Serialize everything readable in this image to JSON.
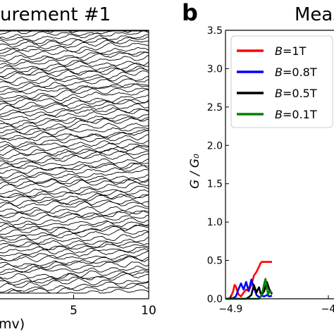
{
  "chart_data": [
    {
      "type": "line",
      "title": "urement #1",
      "xlabel": "mv)",
      "xticks": [
        "5",
        "10"
      ],
      "xlim": [
        0,
        10
      ],
      "description_colors": {
        "trace": "#000000"
      },
      "series_count": 90
    },
    {
      "type": "line",
      "panel_label": "b",
      "title": "Meas",
      "ylabel": "G / G₀",
      "ylim": [
        0,
        3.5
      ],
      "yticks": [
        "0.0",
        "0.5",
        "1.0",
        "1.5",
        "2.0",
        "2.5",
        "3.0",
        "3.5"
      ],
      "xticks": [
        "−4.9",
        "−4"
      ],
      "xlim": [
        -4.92,
        -4.5
      ],
      "legend_position": "upper-left",
      "series": [
        {
          "name": "B=1T",
          "color": "#ff0000",
          "x": [
            -4.92,
            -4.91,
            -4.9,
            -4.89,
            -4.885,
            -4.88,
            -4.87,
            -4.86,
            -4.85,
            -4.84,
            -4.83,
            -4.82,
            -4.81,
            -4.8,
            -4.79,
            -4.785,
            -4.78,
            -4.775,
            -4.77,
            -4.765,
            -4.76,
            -4.75,
            -4.74
          ],
          "y": [
            0.0,
            0.0,
            0.02,
            0.1,
            0.18,
            0.16,
            0.06,
            0.03,
            0.08,
            0.12,
            0.1,
            0.18,
            0.3,
            0.35,
            0.42,
            0.46,
            0.48,
            0.48,
            0.48,
            0.48,
            0.48,
            0.48,
            0.48
          ]
        },
        {
          "name": "B=0.8T",
          "color": "#0000ff",
          "x": [
            -4.92,
            -4.9,
            -4.89,
            -4.88,
            -4.87,
            -4.86,
            -4.85,
            -4.84,
            -4.83,
            -4.82,
            -4.81,
            -4.8,
            -4.79,
            -4.78,
            -4.77,
            -4.76,
            -4.75,
            -4.74
          ],
          "y": [
            0.0,
            0.0,
            0.01,
            0.03,
            0.12,
            0.2,
            0.12,
            0.22,
            0.1,
            0.25,
            0.15,
            0.05,
            0.02,
            0.04,
            0.03,
            0.05,
            0.03,
            0.04
          ]
        },
        {
          "name": "B=0.5T",
          "color": "#000000",
          "x": [
            -4.92,
            -4.84,
            -4.83,
            -4.82,
            -4.81,
            -4.8,
            -4.795,
            -4.79,
            -4.785,
            -4.78,
            -4.77,
            -4.76,
            -4.75,
            -4.74
          ],
          "y": [
            0.0,
            0.0,
            0.02,
            0.05,
            0.18,
            0.08,
            0.12,
            0.15,
            0.08,
            0.05,
            0.1,
            0.22,
            0.12,
            0.06
          ]
        },
        {
          "name": "B=0.1T",
          "color": "#008000",
          "x": [
            -4.92,
            -4.79,
            -4.78,
            -4.775,
            -4.77,
            -4.765,
            -4.76,
            -4.755,
            -4.75,
            -4.74
          ],
          "y": [
            0.0,
            0.0,
            0.05,
            0.12,
            0.2,
            0.26,
            0.14,
            0.05,
            0.1,
            0.08
          ]
        }
      ]
    }
  ]
}
